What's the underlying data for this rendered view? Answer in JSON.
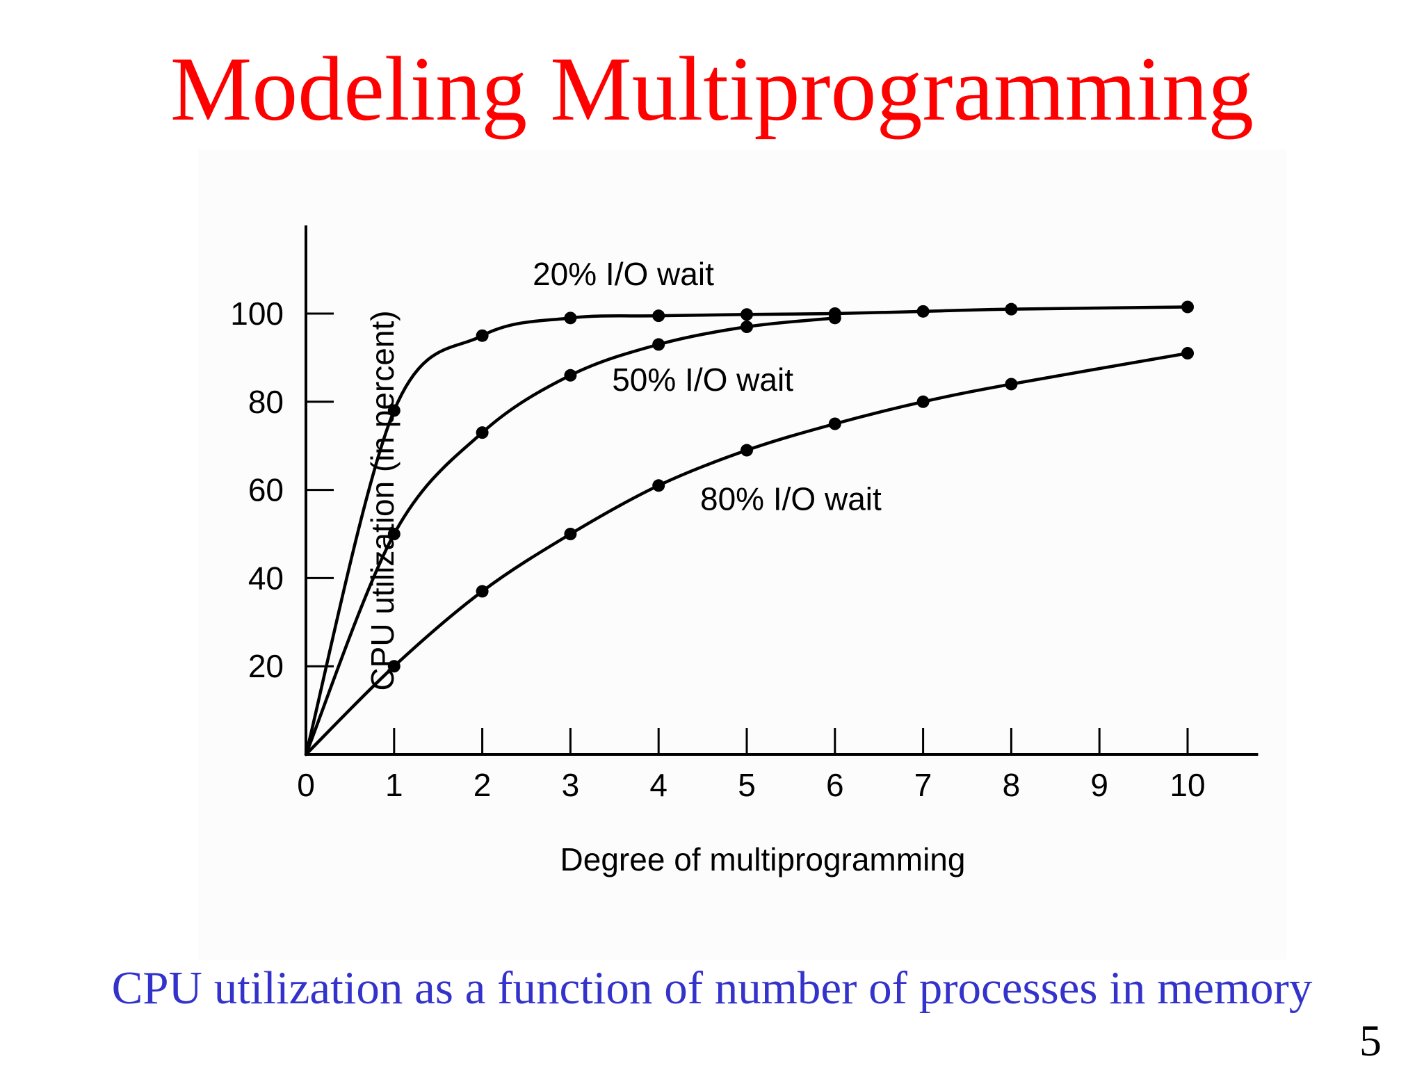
{
  "slide": {
    "title": "Modeling Multiprogramming",
    "caption": "CPU utilization as a function of number of processes in memory",
    "page_number": "5"
  },
  "colors": {
    "title": "#ff0000",
    "caption": "#3333cc",
    "chart_ink": "#000000"
  },
  "chart_data": {
    "type": "line",
    "title": "",
    "xlabel": "Degree of multiprogramming",
    "ylabel": "CPU utilization (in percent)",
    "xlim": [
      0,
      10.8
    ],
    "ylim": [
      0,
      120
    ],
    "x_ticks": [
      0,
      1,
      2,
      3,
      4,
      5,
      6,
      7,
      8,
      9,
      10
    ],
    "y_ticks": [
      20,
      40,
      60,
      80,
      100
    ],
    "grid": false,
    "legend": "none (series labeled inline)",
    "series": [
      {
        "name": "20% I/O wait",
        "x": [
          0,
          1,
          2,
          3,
          4,
          5,
          6,
          7,
          8,
          10
        ],
        "values": [
          0,
          78,
          95,
          99,
          99.5,
          99.8,
          100,
          100.5,
          101,
          101.5
        ]
      },
      {
        "name": "50% I/O wait",
        "x": [
          0,
          1,
          2,
          3,
          4,
          5,
          6
        ],
        "values": [
          0,
          50,
          73,
          86,
          93,
          97,
          99
        ]
      },
      {
        "name": "80% I/O wait",
        "x": [
          0,
          1,
          2,
          3,
          4,
          5,
          6,
          7,
          8,
          10
        ],
        "values": [
          0,
          20,
          37,
          50,
          61,
          69,
          75,
          80,
          84,
          91
        ]
      }
    ]
  }
}
